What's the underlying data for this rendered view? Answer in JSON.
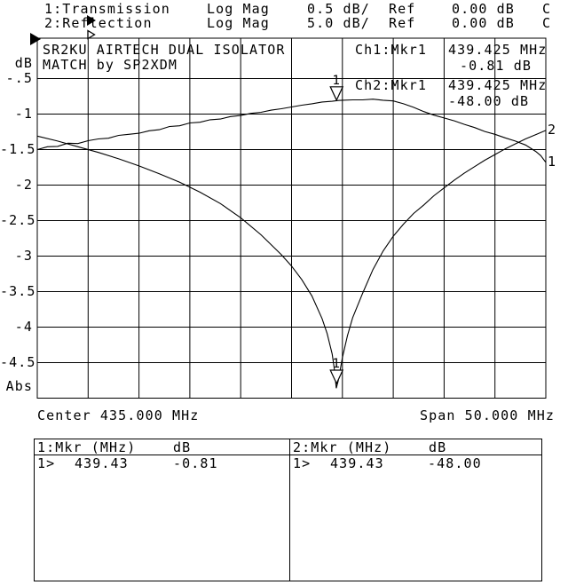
{
  "colors": {
    "fg": "#000000",
    "bg": "#ffffff"
  },
  "header": {
    "rows": [
      {
        "marker_icon": "filled-right-triangle",
        "label": "1:Transmission",
        "format": "Log Mag",
        "scale": "0.5 dB/",
        "ref_label": "Ref",
        "ref_value": "0.00 dB",
        "status": "C"
      },
      {
        "marker_icon": "open-right-triangle",
        "label": "2:Reflection",
        "format": "Log Mag",
        "scale": "5.0 dB/",
        "ref_label": "Ref",
        "ref_value": "0.00 dB",
        "status": "C"
      }
    ]
  },
  "graph": {
    "title_line1": "SR2KU AIRTECH DUAL ISOLATOR",
    "title_line2": "MATCH by SP2XDM",
    "unit_top": "dB",
    "unit_bottom": "Abs",
    "y_labels": [
      "-.5",
      "-1",
      "-1.5",
      "-2",
      "-2.5",
      "-3",
      "-3.5",
      "-4",
      "-4.5"
    ],
    "readouts": [
      {
        "ch": "Ch1:Mkr1",
        "freq": "439.425 MHz",
        "val": "-0.81 dB"
      },
      {
        "ch": "Ch2:Mkr1",
        "freq": "439.425 MHz",
        "val": "-48.00 dB"
      }
    ],
    "center_label": "Center 435.000 MHz",
    "span_label": "Span 50.000 MHz",
    "trace_label_2": "2",
    "trace_label_1": "1"
  },
  "marker_table": {
    "cells": [
      {
        "header": "1:Mkr (MHz)",
        "unit": "dB",
        "row_no": "1>",
        "freq": "439.43",
        "value": "-0.81"
      },
      {
        "header": "2:Mkr (MHz)",
        "unit": "dB",
        "row_no": "1>",
        "freq": "439.43",
        "value": "-48.00"
      }
    ]
  },
  "chart_data": {
    "type": "line",
    "title": "SR2KU AIRTECH DUAL ISOLATOR MATCH by SP2XDM",
    "x_axis": {
      "label": "MHz",
      "center_mhz": 435.0,
      "span_mhz": 50.0,
      "min": 410.0,
      "max": 460.0,
      "divisions": 10
    },
    "y_axes": [
      {
        "channel": 1,
        "name": "Transmission",
        "unit": "dB",
        "ref_db": 0.0,
        "db_per_div": 0.5,
        "top": 0.0,
        "bottom": -5.0
      },
      {
        "channel": 2,
        "name": "Reflection",
        "unit": "dB",
        "ref_db": 0.0,
        "db_per_div": 5.0,
        "top": 0.0,
        "bottom": -50.0
      }
    ],
    "grid": {
      "h_divisions": 10,
      "v_divisions": 10
    },
    "markers": [
      {
        "trace": 1,
        "label": "1",
        "freq_mhz": 439.425,
        "value_db": -0.81
      },
      {
        "trace": 2,
        "label": "1",
        "freq_mhz": 439.425,
        "value_db": -48.0
      }
    ],
    "series": [
      {
        "name": "Transmission",
        "channel": 1,
        "db_per_div": 0.5,
        "points": [
          [
            410,
            -1.5
          ],
          [
            411,
            -1.46
          ],
          [
            412,
            -1.455
          ],
          [
            413,
            -1.41
          ],
          [
            414,
            -1.415
          ],
          [
            415,
            -1.375
          ],
          [
            416,
            -1.35
          ],
          [
            417,
            -1.34
          ],
          [
            418,
            -1.3
          ],
          [
            419,
            -1.285
          ],
          [
            420,
            -1.27
          ],
          [
            421,
            -1.235
          ],
          [
            422,
            -1.22
          ],
          [
            423,
            -1.175
          ],
          [
            424,
            -1.165
          ],
          [
            425,
            -1.125
          ],
          [
            426,
            -1.115
          ],
          [
            427,
            -1.08
          ],
          [
            428,
            -1.07
          ],
          [
            429,
            -1.035
          ],
          [
            430,
            -1.02
          ],
          [
            431,
            -0.99
          ],
          [
            432,
            -0.975
          ],
          [
            433,
            -0.945
          ],
          [
            434,
            -0.925
          ],
          [
            435,
            -0.9
          ],
          [
            436,
            -0.875
          ],
          [
            437,
            -0.855
          ],
          [
            438,
            -0.83
          ],
          [
            439,
            -0.82
          ],
          [
            439.5,
            -0.81
          ],
          [
            440,
            -0.805
          ],
          [
            441,
            -0.8
          ],
          [
            442,
            -0.8
          ],
          [
            443,
            -0.79
          ],
          [
            444,
            -0.805
          ],
          [
            445,
            -0.815
          ],
          [
            446,
            -0.855
          ],
          [
            447,
            -0.905
          ],
          [
            448,
            -0.965
          ],
          [
            449,
            -1.015
          ],
          [
            450,
            -1.055
          ],
          [
            451,
            -1.095
          ],
          [
            452,
            -1.145
          ],
          [
            453,
            -1.19
          ],
          [
            454,
            -1.245
          ],
          [
            455,
            -1.285
          ],
          [
            456,
            -1.335
          ],
          [
            457,
            -1.38
          ],
          [
            458,
            -1.435
          ],
          [
            459,
            -1.525
          ],
          [
            459.5,
            -1.585
          ],
          [
            460,
            -1.68
          ]
        ]
      },
      {
        "name": "Reflection",
        "channel": 2,
        "db_per_div": 5.0,
        "points": [
          [
            410,
            -13.1
          ],
          [
            412,
            -13.8
          ],
          [
            414,
            -14.6
          ],
          [
            416,
            -15.4
          ],
          [
            418,
            -16.3
          ],
          [
            420,
            -17.3
          ],
          [
            422,
            -18.4
          ],
          [
            424,
            -19.6
          ],
          [
            426,
            -21.0
          ],
          [
            428,
            -22.6
          ],
          [
            430,
            -24.6
          ],
          [
            432,
            -27.0
          ],
          [
            434,
            -29.8
          ],
          [
            435,
            -31.4
          ],
          [
            436,
            -33.3
          ],
          [
            437,
            -35.6
          ],
          [
            438,
            -38.8
          ],
          [
            438.5,
            -40.9
          ],
          [
            439,
            -43.8
          ],
          [
            439.2,
            -45.8
          ],
          [
            439.4,
            -48.6
          ],
          [
            439.6,
            -47.5
          ],
          [
            439.8,
            -45.9
          ],
          [
            440,
            -44.3
          ],
          [
            440.5,
            -41.2
          ],
          [
            441,
            -38.7
          ],
          [
            442,
            -35.2
          ],
          [
            443,
            -31.9
          ],
          [
            444,
            -29.3
          ],
          [
            445,
            -27.2
          ],
          [
            446,
            -25.5
          ],
          [
            447,
            -24.0
          ],
          [
            448,
            -22.8
          ],
          [
            449,
            -21.5
          ],
          [
            450,
            -20.4
          ],
          [
            451,
            -19.3
          ],
          [
            452,
            -18.3
          ],
          [
            453,
            -17.4
          ],
          [
            454,
            -16.5
          ],
          [
            455,
            -15.7
          ],
          [
            456,
            -14.9
          ],
          [
            457,
            -14.2
          ],
          [
            458,
            -13.5
          ],
          [
            459,
            -12.9
          ],
          [
            460,
            -12.3
          ]
        ]
      }
    ]
  }
}
